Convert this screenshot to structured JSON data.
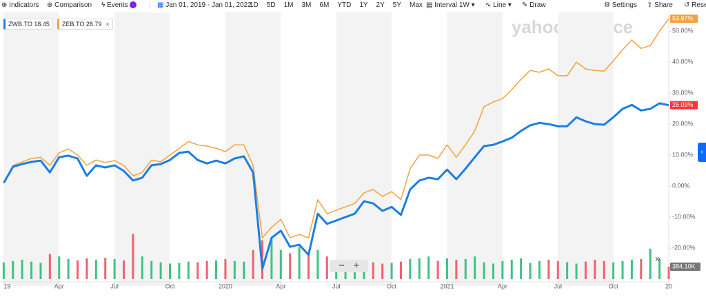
{
  "toolbar": {
    "indicators": "Indicators",
    "comparison": "Comparison",
    "events": "Events",
    "date_range": "Jan 01, 2019 - Jan 01, 2022",
    "ranges": [
      "1D",
      "5D",
      "1M",
      "3M",
      "6M",
      "YTD",
      "1Y",
      "2Y",
      "5Y",
      "Max"
    ],
    "interval_label": "Interval",
    "interval": "1W",
    "chart_style": "Line",
    "draw": "Draw",
    "settings": "Settings",
    "share": "Share",
    "reset": "Rese"
  },
  "watermark": "yahoo!finance",
  "chart_data": {
    "type": "line",
    "x": [
      0,
      0.5,
      1,
      1.5,
      2,
      2.5,
      3,
      3.5,
      4,
      4.5,
      5,
      5.5,
      6,
      6.5,
      7,
      7.5,
      8,
      8.5,
      9,
      9.5,
      10,
      10.5,
      11,
      11.5,
      12,
      12.5,
      13,
      13.5,
      14,
      14.5,
      15,
      15.5,
      16,
      16.5,
      17,
      17.5,
      18,
      18.5,
      19,
      19.5,
      20,
      20.5,
      21,
      21.5,
      22,
      22.5,
      23,
      23.5,
      24,
      24.5,
      25,
      25.5,
      26,
      26.5,
      27,
      27.5,
      28,
      28.5,
      29,
      29.5,
      30,
      30.5,
      31,
      31.5,
      32,
      32.5,
      33,
      33.5,
      34,
      34.5,
      35,
      35.5,
      36
    ],
    "xlim": [
      -0.2,
      36
    ],
    "xticks": [
      {
        "value": 0,
        "label": "19"
      },
      {
        "value": 3,
        "label": "Apr"
      },
      {
        "value": 6,
        "label": "Jul"
      },
      {
        "value": 9,
        "label": "Oct"
      },
      {
        "value": 12,
        "label": "2020"
      },
      {
        "value": 15,
        "label": "Apr"
      },
      {
        "value": 18,
        "label": "Jul"
      },
      {
        "value": 21,
        "label": "Oct"
      },
      {
        "value": 24,
        "label": "2021"
      },
      {
        "value": 27,
        "label": "Apr"
      },
      {
        "value": 30,
        "label": "Jul"
      },
      {
        "value": 33,
        "label": "Oct"
      },
      {
        "value": 36,
        "label": "20"
      }
    ],
    "ylim": [
      -30,
      53.8
    ],
    "yticks": [
      {
        "value": -20,
        "label": "-20.00%"
      },
      {
        "value": -10,
        "label": "-10.00%"
      },
      {
        "value": 0,
        "label": "0.00%"
      },
      {
        "value": 10,
        "label": "10.00%"
      },
      {
        "value": 20,
        "label": "20.00%"
      },
      {
        "value": 30,
        "label": "30.00%"
      },
      {
        "value": 40,
        "label": "40.00%"
      },
      {
        "value": 50,
        "label": "50.00%"
      }
    ],
    "series": [
      {
        "name": "ZWB.TO",
        "price": 18.45,
        "color": "#1a7fe3",
        "end_label": "26.09%",
        "end_color": "#ff333a",
        "width": 3,
        "values": [
          1,
          6.2,
          7.1,
          7.8,
          8.2,
          4.4,
          9.3,
          9.8,
          8.9,
          3.3,
          6.7,
          6,
          6.7,
          4.9,
          1.8,
          2.7,
          6.7,
          7.1,
          8.4,
          10.7,
          11.1,
          8.4,
          7.3,
          8.2,
          7.3,
          8.9,
          9.6,
          4.4,
          -26.7,
          -16.7,
          -14.4,
          -19.6,
          -18.9,
          -22.2,
          -8.9,
          -12.2,
          -11.1,
          -10,
          -8.9,
          -4.9,
          -5.6,
          -8,
          -6.7,
          -9.3,
          -1.1,
          1.8,
          2.7,
          2.2,
          5.3,
          2.2,
          5.6,
          9.3,
          12.9,
          13.3,
          14.4,
          15.6,
          17.8,
          19.6,
          20.4,
          20,
          19.3,
          19.3,
          22.2,
          20.9,
          20,
          19.8,
          22.2,
          24.9,
          26.2,
          24.4,
          24.9,
          26.7,
          26.09
        ]
      },
      {
        "name": "ZEB.TO",
        "price": 28.79,
        "color": "#f5a13b",
        "end_label": "53.97%",
        "end_color": "#f5a13b",
        "width": 1.5,
        "values": [
          1,
          6.7,
          7.8,
          8.9,
          9.3,
          6.7,
          10.7,
          12,
          10,
          6.7,
          8.4,
          7.6,
          8.2,
          6.7,
          3.3,
          4.4,
          8.4,
          7.8,
          10,
          12.2,
          14.4,
          13.3,
          12.9,
          12.2,
          11.1,
          13.3,
          13.3,
          6.7,
          -16.7,
          -13.3,
          -10.7,
          -16.7,
          -15.6,
          -16.7,
          -4.4,
          -8.9,
          -7.8,
          -6.7,
          -5.6,
          -2.2,
          -1.1,
          -3.3,
          -1.8,
          -4.4,
          5.6,
          10,
          10,
          8.9,
          13.3,
          9.3,
          13.3,
          17.8,
          25.6,
          27.1,
          28.2,
          31.1,
          34.4,
          37.3,
          36.7,
          37.8,
          35.6,
          35.6,
          40,
          37.8,
          37.3,
          37.1,
          40.4,
          44,
          47.1,
          44.4,
          45.3,
          50,
          53.97
        ]
      }
    ],
    "volume": {
      "up_color": "#3ec283",
      "down_color": "#f2616f",
      "ylim": [
        0,
        1600000
      ],
      "last_label": "384.10K",
      "values": [
        520000,
        560000,
        600000,
        540000,
        500000,
        780000,
        700000,
        620000,
        580000,
        640000,
        600000,
        660000,
        620000,
        580000,
        1400000,
        700000,
        560000,
        520000,
        480000,
        500000,
        540000,
        520000,
        560000,
        580000,
        620000,
        560000,
        540000,
        900000,
        1200000,
        1250000,
        900000,
        800000,
        1000000,
        820000,
        900000,
        700000,
        520000,
        480000,
        500000,
        450000,
        520000,
        480000,
        500000,
        540000,
        620000,
        640000,
        700000,
        560000,
        640000,
        600000,
        620000,
        700000,
        520000,
        480000,
        560000,
        600000,
        640000,
        500000,
        560000,
        600000,
        560000,
        520000,
        480000,
        540000,
        600000,
        560000,
        520000,
        560000,
        600000,
        620000,
        940000,
        620000,
        384100
      ]
    }
  }
}
